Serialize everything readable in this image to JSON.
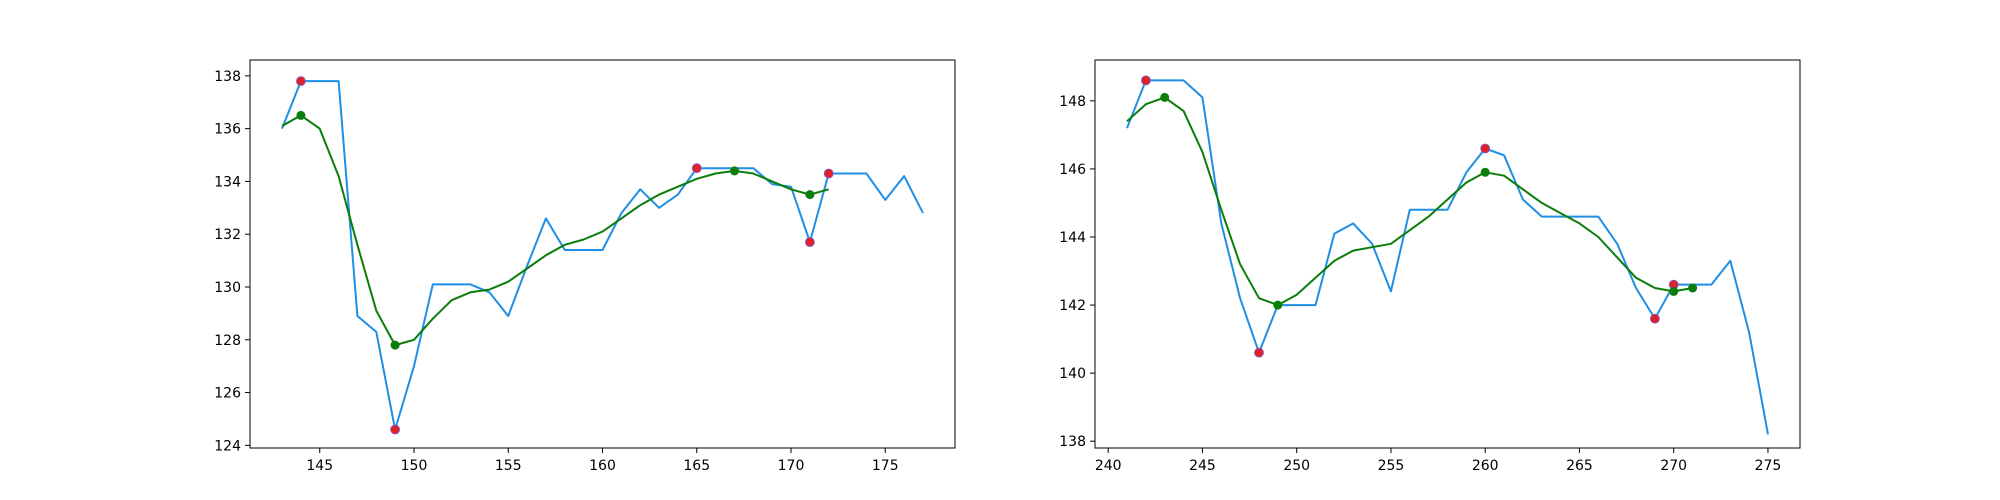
{
  "colors": {
    "raw_line": "#1f8fe5",
    "smooth_line": "#0a7d0a",
    "raw_extrema": "#e0202a",
    "smooth_extrema": "#0a7d0a",
    "axes": "#000000",
    "background": "#ffffff"
  },
  "chart_data": [
    {
      "type": "line",
      "xlim": [
        141.3,
        178.7
      ],
      "ylim": [
        123.9,
        138.6
      ],
      "xticks": [
        145,
        150,
        155,
        160,
        165,
        170,
        175
      ],
      "yticks": [
        124,
        126,
        128,
        130,
        132,
        134,
        136,
        138
      ],
      "grid": false,
      "series": [
        {
          "role": "raw",
          "x": [
            143,
            144,
            145,
            146,
            147,
            148,
            149,
            150,
            151,
            152,
            153,
            154,
            155,
            156,
            157,
            158,
            159,
            160,
            161,
            162,
            163,
            164,
            165,
            166,
            167,
            168,
            169,
            170,
            171,
            172,
            173,
            174,
            175,
            176,
            177
          ],
          "y": [
            136.0,
            137.8,
            137.8,
            137.8,
            128.9,
            128.3,
            124.6,
            127.0,
            130.1,
            130.1,
            130.1,
            129.8,
            128.9,
            130.8,
            132.6,
            131.4,
            131.4,
            131.4,
            132.8,
            133.7,
            133.0,
            133.5,
            134.5,
            134.5,
            134.5,
            134.5,
            133.9,
            133.8,
            131.7,
            134.3,
            134.3,
            134.3,
            133.3,
            134.2,
            132.8
          ]
        },
        {
          "role": "smoothed",
          "x": [
            143,
            144,
            145,
            146,
            147,
            148,
            149,
            150,
            151,
            152,
            153,
            154,
            155,
            156,
            157,
            158,
            159,
            160,
            161,
            162,
            163,
            164,
            165,
            166,
            167,
            168,
            169,
            170,
            171,
            172
          ],
          "y": [
            136.1,
            136.5,
            136.0,
            134.2,
            131.6,
            129.1,
            127.8,
            128.0,
            128.8,
            129.5,
            129.8,
            129.9,
            130.2,
            130.7,
            131.2,
            131.6,
            131.8,
            132.1,
            132.6,
            133.1,
            133.5,
            133.8,
            134.1,
            134.3,
            134.4,
            134.3,
            134.0,
            133.7,
            133.5,
            133.7
          ]
        }
      ],
      "markers": [
        {
          "role": "raw-extrema",
          "x": [
            144,
            149,
            165,
            171,
            172
          ],
          "y": [
            137.8,
            124.6,
            134.5,
            131.7,
            134.3
          ]
        },
        {
          "role": "smoothed-extrema",
          "x": [
            144,
            149,
            167,
            171
          ],
          "y": [
            136.5,
            127.8,
            134.4,
            133.5
          ]
        }
      ]
    },
    {
      "type": "line",
      "xlim": [
        239.3,
        276.7
      ],
      "ylim": [
        137.8,
        149.2
      ],
      "xticks": [
        240,
        245,
        250,
        255,
        260,
        265,
        270,
        275
      ],
      "yticks": [
        138,
        140,
        142,
        144,
        146,
        148
      ],
      "grid": false,
      "series": [
        {
          "role": "raw",
          "x": [
            241,
            242,
            243,
            244,
            245,
            246,
            247,
            248,
            249,
            250,
            251,
            252,
            253,
            254,
            255,
            256,
            257,
            258,
            259,
            260,
            261,
            262,
            263,
            264,
            265,
            266,
            267,
            268,
            269,
            270,
            271,
            272,
            273,
            274,
            275
          ],
          "y": [
            147.2,
            148.6,
            148.6,
            148.6,
            148.1,
            144.4,
            142.2,
            140.6,
            142.0,
            142.0,
            142.0,
            144.1,
            144.4,
            143.8,
            142.4,
            144.8,
            144.8,
            144.8,
            145.9,
            146.6,
            146.4,
            145.1,
            144.6,
            144.6,
            144.6,
            144.6,
            143.8,
            142.5,
            141.6,
            142.6,
            142.6,
            142.6,
            143.3,
            141.2,
            138.2
          ]
        },
        {
          "role": "smoothed",
          "x": [
            241,
            242,
            243,
            244,
            245,
            246,
            247,
            248,
            249,
            250,
            251,
            252,
            253,
            254,
            255,
            256,
            257,
            258,
            259,
            260,
            261,
            262,
            263,
            264,
            265,
            266,
            267,
            268,
            269,
            270,
            271
          ],
          "y": [
            147.4,
            147.9,
            148.1,
            147.7,
            146.5,
            144.8,
            143.2,
            142.2,
            142.0,
            142.3,
            142.8,
            143.3,
            143.6,
            143.7,
            143.8,
            144.2,
            144.6,
            145.1,
            145.6,
            145.9,
            145.8,
            145.4,
            145.0,
            144.7,
            144.4,
            144.0,
            143.4,
            142.8,
            142.5,
            142.4,
            142.5
          ]
        }
      ],
      "markers": [
        {
          "role": "raw-extrema",
          "x": [
            242,
            248,
            260,
            269,
            270
          ],
          "y": [
            148.6,
            140.6,
            146.6,
            141.6,
            142.6
          ]
        },
        {
          "role": "smoothed-extrema",
          "x": [
            243,
            249,
            260,
            270,
            271
          ],
          "y": [
            148.1,
            142.0,
            145.9,
            142.4,
            142.5
          ]
        }
      ]
    }
  ]
}
